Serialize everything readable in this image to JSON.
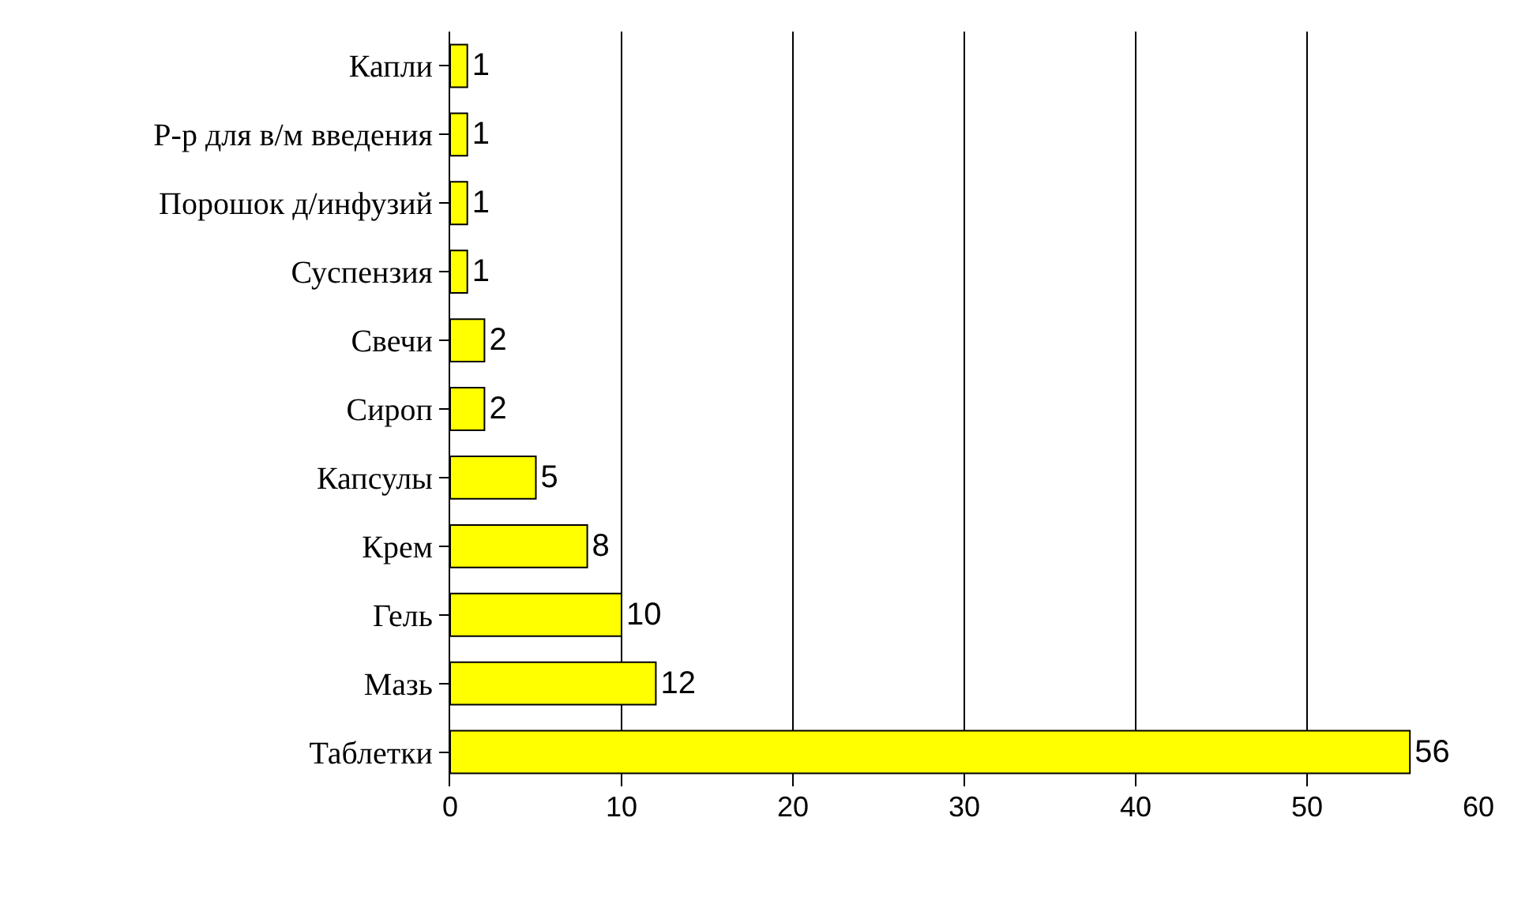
{
  "chart_data": {
    "type": "bar",
    "orientation": "horizontal",
    "categories": [
      "Капли",
      "Р-р для в/м введения",
      "Порошок д/инфузий",
      "Суспензия",
      "Свечи",
      "Сироп",
      "Капсулы",
      "Крем",
      "Гель",
      "Мазь",
      "Таблетки"
    ],
    "values": [
      1,
      1,
      1,
      1,
      2,
      2,
      5,
      8,
      10,
      12,
      56
    ],
    "color": "#ffff00",
    "xlim": [
      0,
      60
    ],
    "xticks": [
      0,
      10,
      20,
      30,
      40,
      50,
      60
    ],
    "grid": "x",
    "data_labels": true
  }
}
